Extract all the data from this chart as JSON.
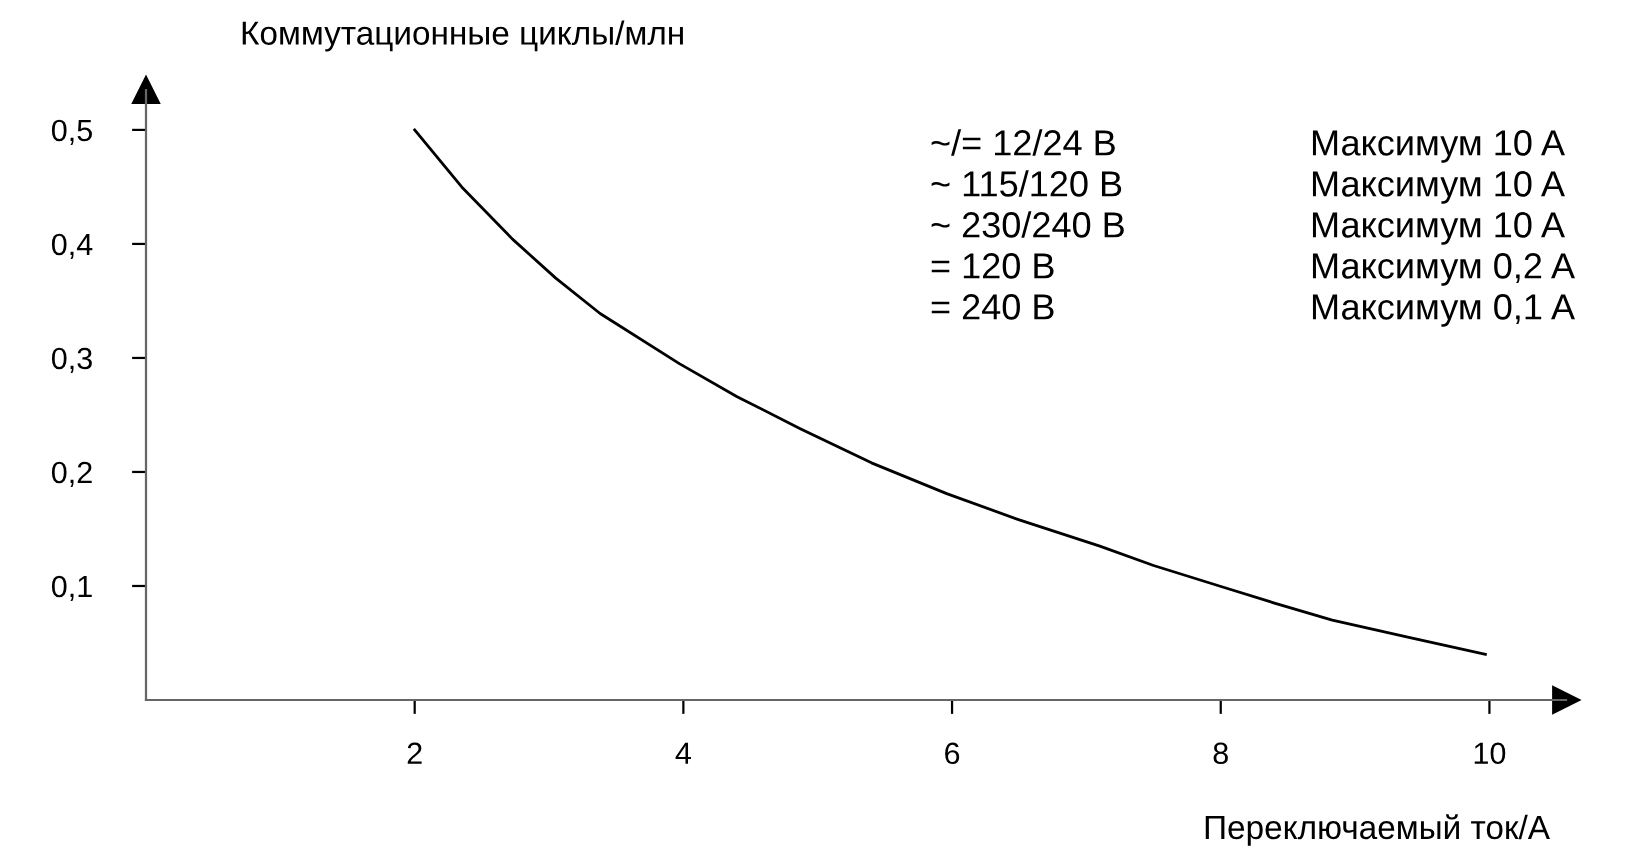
{
  "chart_data": {
    "type": "line",
    "ylabel": "Коммутационные циклы/млн",
    "xlabel": "Переключаемый ток/A",
    "x": [
      2.0,
      2.35,
      2.73,
      3.05,
      3.38,
      3.97,
      4.4,
      4.87,
      5.4,
      5.96,
      6.5,
      7.1,
      7.5,
      7.99,
      8.4,
      8.83,
      9.4,
      9.97
    ],
    "series": [
      {
        "color": "#000000",
        "values": [
          0.5,
          0.45,
          0.404,
          0.37,
          0.339,
          0.295,
          0.266,
          0.238,
          0.208,
          0.181,
          0.158,
          0.135,
          0.118,
          0.1,
          0.085,
          0.07,
          0.055,
          0.04
        ]
      }
    ],
    "xlim": [
      0,
      10.57
    ],
    "ylim": [
      0,
      0.535
    ],
    "xticks": [
      2,
      4,
      6,
      8,
      10
    ],
    "yticks": [
      {
        "value": 0.1,
        "label": "0,1"
      },
      {
        "value": 0.2,
        "label": "0,2"
      },
      {
        "value": 0.3,
        "label": "0,3"
      },
      {
        "value": 0.4,
        "label": "0,4"
      },
      {
        "value": 0.5,
        "label": "0,5"
      }
    ],
    "marker": "none",
    "line_style": "solid",
    "grid": false,
    "legend": false,
    "annotations": [
      "~/= 12/24 В",
      "~ 115/120 В",
      "~ 230/240 В",
      "= 120 В",
      "= 240 В",
      "Максимум 10 A",
      "Максимум 10 A",
      "Максимум 10 A",
      "Максимум 0,2 A",
      "Максимум 0,1 A"
    ]
  }
}
